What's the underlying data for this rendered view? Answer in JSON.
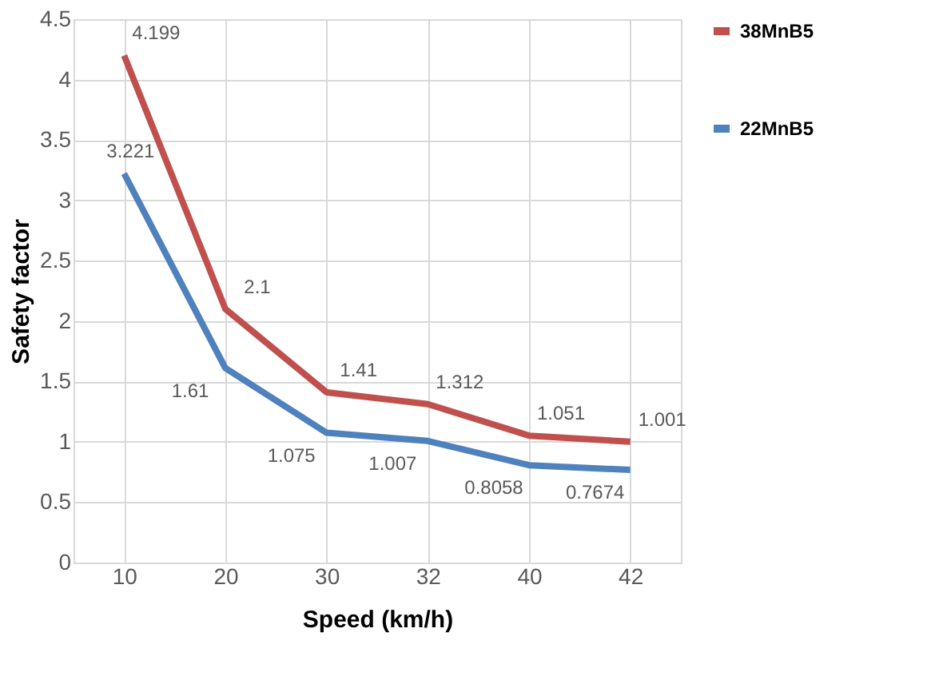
{
  "chart_data": {
    "type": "line",
    "xlabel": "Speed (km/h)",
    "ylabel": "Safety factor",
    "categories": [
      "10",
      "20",
      "30",
      "32",
      "40",
      "42"
    ],
    "series": [
      {
        "name": "38MnB5",
        "color": "#c0504d",
        "values": [
          4.199,
          2.1,
          1.41,
          1.312,
          1.051,
          1.001
        ]
      },
      {
        "name": "22MnB5",
        "color": "#4f81bd",
        "values": [
          3.221,
          1.61,
          1.075,
          1.007,
          0.8058,
          0.7674
        ]
      }
    ],
    "ylim": [
      0,
      4.5
    ],
    "yticks": [
      0,
      0.5,
      1,
      1.5,
      2,
      2.5,
      3,
      3.5,
      4,
      4.5
    ],
    "grid": true,
    "legend": "right",
    "data_labels": true,
    "marker": "none",
    "line_style": "solid"
  }
}
